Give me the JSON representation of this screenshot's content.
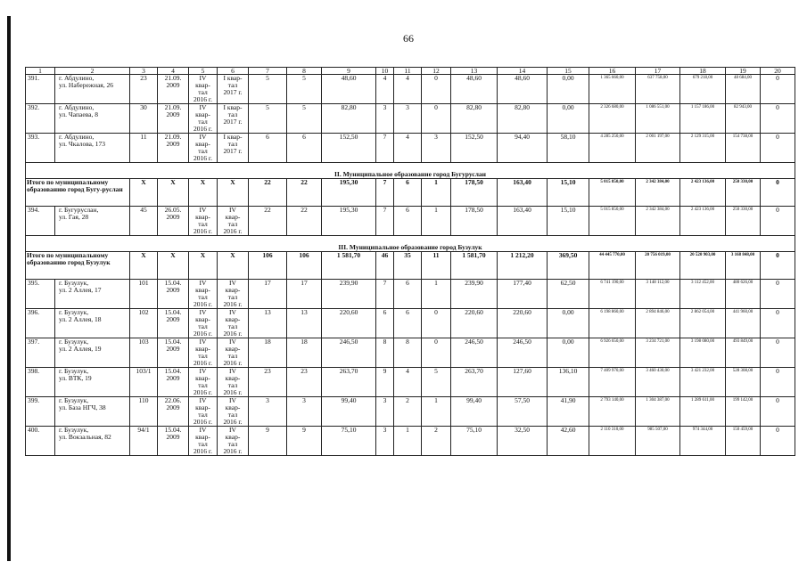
{
  "page_number": "66",
  "header": [
    "1",
    "2",
    "3",
    "4",
    "5",
    "6",
    "7",
    "8",
    "9",
    "10",
    "11",
    "12",
    "13",
    "14",
    "15",
    "16",
    "17",
    "18",
    "19",
    "20"
  ],
  "rows": [
    {
      "type": "row",
      "cells": [
        "391.",
        "г. Абдулино,\nул. Набережная, 26",
        "23",
        "21.09.\n2009",
        "IV\nквар-\nтал\n2016 г.",
        "I квар-\nтал\n2017 г.",
        "5",
        "5",
        "48,60",
        "4",
        "4",
        "0",
        "48,60",
        "48,60",
        "0,00",
        "1 365 660,00",
        "637 758,00",
        "679 218,00",
        "48 684,00",
        "0"
      ]
    },
    {
      "type": "row",
      "cells": [
        "392.",
        "г. Абдулино,\nул. Чапаева, 8",
        "30",
        "21.09.\n2009",
        "IV\nквар-\nтал\n2016 г.",
        "I квар-\nтал\n2017 г.",
        "5",
        "5",
        "82,80",
        "3",
        "3",
        "0",
        "82,80",
        "82,80",
        "0,00",
        "2 326 680,00",
        "1 086 551,00",
        "1 157 186,00",
        "82 943,00",
        "0"
      ]
    },
    {
      "type": "row",
      "cells": [
        "393.",
        "г. Абдулино,\nул. Чкалова, 173",
        "11",
        "21.09.\n2009",
        "IV\nквар-\nтал\n2016 г.",
        "I квар-\nтал\n2017 г.",
        "6",
        "6",
        "152,50",
        "7",
        "4",
        "3",
        "152,50",
        "94,40",
        "58,10",
        "4 285 250,00",
        "2 001 197,00",
        "2 129 315,00",
        "154 738,00",
        "0"
      ]
    },
    {
      "type": "section",
      "title": "II. Муниципальное образование город Бугуруслан"
    },
    {
      "type": "total",
      "cells": [
        "Итого по муниципальному образованию город Бугу-руслан",
        "X",
        "X",
        "X",
        "X",
        "22",
        "22",
        "195,30",
        "7",
        "6",
        "1",
        "178,50",
        "163,40",
        "15,10",
        "5 015 850,00",
        "2 342 384,00",
        "2 423 136,00",
        "250 330,00",
        "0"
      ]
    },
    {
      "type": "row",
      "cells": [
        "394.",
        "г. Бугуруслан,\nул. Гая, 28",
        "45",
        "26.05.\n2009",
        "IV\nквар-\nтал\n2016 г.",
        "IV\nквар-\nтал\n2016 г.",
        "22",
        "22",
        "195,30",
        "7",
        "6",
        "1",
        "178,50",
        "163,40",
        "15,10",
        "5 015 850,00",
        "2 342 384,00",
        "2 423 136,00",
        "250 330,00",
        "0"
      ]
    },
    {
      "type": "section",
      "title": "III. Муниципальное образование город Бузулук"
    },
    {
      "type": "total",
      "cells": [
        "Итого по муниципальному образованию город Бузулук",
        "X",
        "X",
        "X",
        "X",
        "106",
        "106",
        "1 581,70",
        "46",
        "35",
        "11",
        "1 581,70",
        "1 212,20",
        "369,50",
        "44 445 770,00",
        "20 756 019,00",
        "20 520 903,00",
        "3 168 848,00",
        "0"
      ]
    },
    {
      "type": "row",
      "cells": [
        "395.",
        "г. Бузулук,\nул. 2 Аллея, 17",
        "101",
        "15.04.\n2009",
        "IV\nквар-\nтал\n2016 г.",
        "IV\nквар-\nтал\n2016 г.",
        "17",
        "17",
        "239,90",
        "7",
        "6",
        "1",
        "239,90",
        "177,40",
        "62,50",
        "6 741 190,00",
        "3 148 112,00",
        "3 112 452,00",
        "480 626,00",
        "0"
      ]
    },
    {
      "type": "row",
      "cells": [
        "396.",
        "г. Бузулук,\nул. 2 Аллея, 18",
        "102",
        "15.04.\n2009",
        "IV\nквар-\nтал\n2016 г.",
        "IV\nквар-\nтал\n2016 г.",
        "13",
        "13",
        "220,60",
        "6",
        "6",
        "0",
        "220,60",
        "220,60",
        "0,00",
        "6 198 860,00",
        "2 894 846,00",
        "2 862 054,00",
        "441 960,00",
        "0"
      ]
    },
    {
      "type": "row",
      "cells": [
        "397.",
        "г. Бузулук,\nул. 2 Аллея, 19",
        "103",
        "15.04.\n2009",
        "IV\nквар-\nтал\n2016 г.",
        "IV\nквар-\nтал\n2016 г.",
        "18",
        "18",
        "246,50",
        "8",
        "8",
        "0",
        "246,50",
        "246,50",
        "0,00",
        "6 926 650,00",
        "3 234 721,00",
        "3 198 080,00",
        "493 849,00",
        "0"
      ]
    },
    {
      "type": "row",
      "cells": [
        "398.",
        "г. Бузулук,\nул. ВТК, 19",
        "103/1",
        "15.04.\n2009",
        "IV\nквар-\nтал\n2016 г.",
        "IV\nквар-\nтал\n2016 г.",
        "23",
        "23",
        "263,70",
        "9",
        "4",
        "5",
        "263,70",
        "127,60",
        "136,10",
        "7 409 970,00",
        "3 460 430,00",
        "3 421 232,00",
        "528 308,00",
        "0"
      ]
    },
    {
      "type": "row",
      "cells": [
        "399.",
        "г. Бузулук,\nул. База НГЧ, 38",
        "110",
        "22.06.\n2009",
        "IV\nквар-\nтал\n2016 г.",
        "IV\nквар-\nтал\n2016 г.",
        "3",
        "3",
        "99,40",
        "3",
        "2",
        "1",
        "99,40",
        "57,50",
        "41,90",
        "2 793 140,00",
        "1 304 387,00",
        "1 289 611,00",
        "199 142,00",
        "0"
      ]
    },
    {
      "type": "row",
      "cells": [
        "400.",
        "г. Бузулук,\nул. Вокзальная, 82",
        "94/1",
        "15.04.\n2009",
        "IV\nквар-\nтал\n2016 г.",
        "IV\nквар-\nтал\n2016 г.",
        "9",
        "9",
        "75,10",
        "3",
        "1",
        "2",
        "75,10",
        "32,50",
        "42,60",
        "2 110 310,00",
        "985 507,00",
        "974 344,00",
        "150 459,00",
        "0"
      ]
    }
  ]
}
